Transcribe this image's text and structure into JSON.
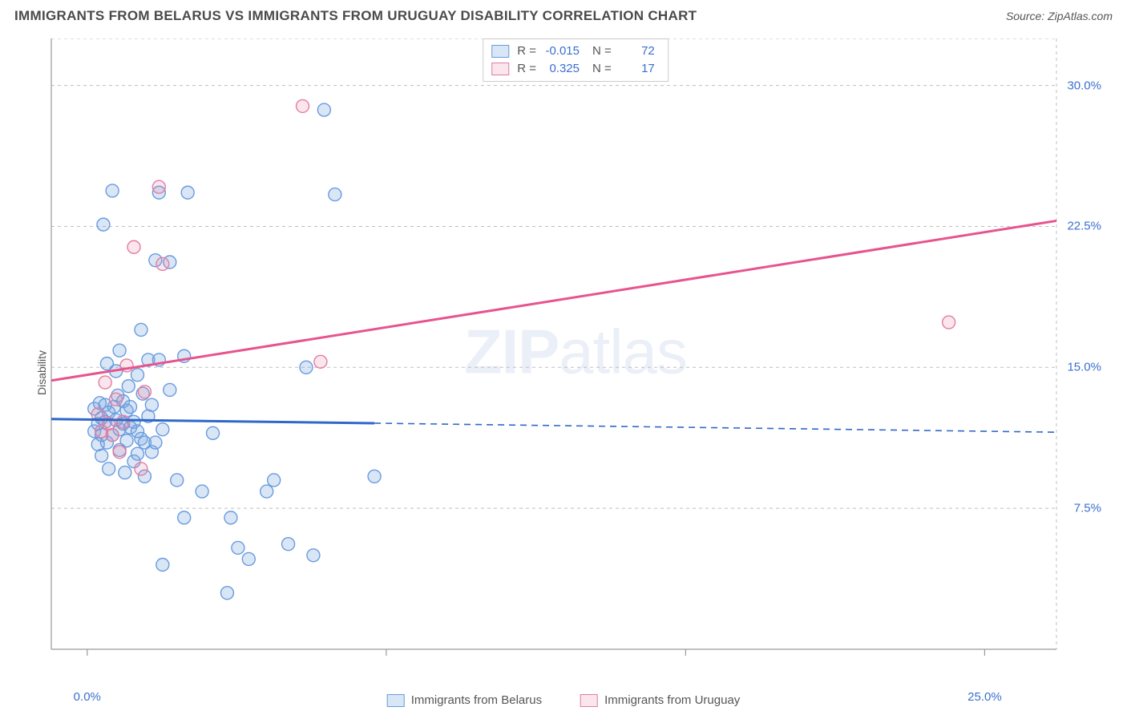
{
  "title": "IMMIGRANTS FROM BELARUS VS IMMIGRANTS FROM URUGUAY DISABILITY CORRELATION CHART",
  "source_prefix": "Source: ",
  "source": "ZipAtlas.com",
  "ylabel": "Disability",
  "watermark": "ZIPatlas",
  "chart": {
    "type": "scatter",
    "xlim": [
      -1.0,
      27.0
    ],
    "ylim": [
      0.0,
      32.5
    ],
    "x_ticks": [
      0.0,
      25.0
    ],
    "x_tick_labels": [
      "0.0%",
      "25.0%"
    ],
    "x_minor_ticks": [
      8.33,
      16.67
    ],
    "y_ticks": [
      7.5,
      15.0,
      22.5,
      30.0
    ],
    "y_tick_labels": [
      "7.5%",
      "15.0%",
      "22.5%",
      "30.0%"
    ],
    "grid_color": "#bfbfbf",
    "axis_color": "#9a9a9a",
    "background": "#ffffff",
    "marker_radius": 8,
    "marker_stroke_width": 1.4,
    "line_width": 3.0,
    "colors": {
      "belarus_fill": "rgba(120,165,220,0.28)",
      "belarus_stroke": "#6a9be0",
      "belarus_line": "#2f68c8",
      "uruguay_fill": "rgba(230,140,170,0.22)",
      "uruguay_stroke": "#e37da3",
      "uruguay_line": "#e7548d",
      "label_text": "#3b6fcf"
    },
    "series": {
      "belarus": {
        "label": "Immigrants from Belarus",
        "R": "-0.015",
        "N": "72",
        "trend": {
          "x0": -1.0,
          "y0": 12.25,
          "x1_solid": 8.0,
          "y1_solid": 12.03,
          "x1": 27.0,
          "y1": 11.55
        },
        "points": [
          [
            0.2,
            12.8
          ],
          [
            0.2,
            11.6
          ],
          [
            0.3,
            10.9
          ],
          [
            0.3,
            12.0
          ],
          [
            0.35,
            13.1
          ],
          [
            0.4,
            11.4
          ],
          [
            0.4,
            12.3
          ],
          [
            0.4,
            10.3
          ],
          [
            0.45,
            22.6
          ],
          [
            0.5,
            12.1
          ],
          [
            0.5,
            13.0
          ],
          [
            0.55,
            15.2
          ],
          [
            0.55,
            11.0
          ],
          [
            0.6,
            9.6
          ],
          [
            0.6,
            12.6
          ],
          [
            0.7,
            11.4
          ],
          [
            0.7,
            24.4
          ],
          [
            0.75,
            12.9
          ],
          [
            0.8,
            12.2
          ],
          [
            0.8,
            14.8
          ],
          [
            0.85,
            13.5
          ],
          [
            0.9,
            10.6
          ],
          [
            0.9,
            11.7
          ],
          [
            0.9,
            15.9
          ],
          [
            1.0,
            12.0
          ],
          [
            1.0,
            13.2
          ],
          [
            1.05,
            9.4
          ],
          [
            1.1,
            11.1
          ],
          [
            1.1,
            12.7
          ],
          [
            1.15,
            14.0
          ],
          [
            1.2,
            11.8
          ],
          [
            1.2,
            12.9
          ],
          [
            1.3,
            10.0
          ],
          [
            1.3,
            12.1
          ],
          [
            1.4,
            10.4
          ],
          [
            1.4,
            11.6
          ],
          [
            1.4,
            14.6
          ],
          [
            1.5,
            17.0
          ],
          [
            1.5,
            11.2
          ],
          [
            1.55,
            13.6
          ],
          [
            1.6,
            11.0
          ],
          [
            1.6,
            9.2
          ],
          [
            1.7,
            15.4
          ],
          [
            1.7,
            12.4
          ],
          [
            1.8,
            10.5
          ],
          [
            1.8,
            13.0
          ],
          [
            1.9,
            11.0
          ],
          [
            1.9,
            20.7
          ],
          [
            2.0,
            24.3
          ],
          [
            2.0,
            15.4
          ],
          [
            2.1,
            11.7
          ],
          [
            2.1,
            4.5
          ],
          [
            2.3,
            13.8
          ],
          [
            2.3,
            20.6
          ],
          [
            2.5,
            9.0
          ],
          [
            2.7,
            7.0
          ],
          [
            2.7,
            15.6
          ],
          [
            2.8,
            24.3
          ],
          [
            3.2,
            8.4
          ],
          [
            3.5,
            11.5
          ],
          [
            3.9,
            3.0
          ],
          [
            4.0,
            7.0
          ],
          [
            4.2,
            5.4
          ],
          [
            4.5,
            4.8
          ],
          [
            5.0,
            8.4
          ],
          [
            5.2,
            9.0
          ],
          [
            5.6,
            5.6
          ],
          [
            6.1,
            15.0
          ],
          [
            6.3,
            5.0
          ],
          [
            6.9,
            24.2
          ],
          [
            8.0,
            9.2
          ],
          [
            6.6,
            28.7
          ]
        ]
      },
      "uruguay": {
        "label": "Immigrants from Uruguay",
        "R": "0.325",
        "N": "17",
        "trend": {
          "x0": -1.0,
          "y0": 14.3,
          "x1": 27.0,
          "y1": 22.8
        },
        "points": [
          [
            0.3,
            12.5
          ],
          [
            0.4,
            11.6
          ],
          [
            0.5,
            14.2
          ],
          [
            0.6,
            12.0
          ],
          [
            0.7,
            11.4
          ],
          [
            0.8,
            13.3
          ],
          [
            0.9,
            10.5
          ],
          [
            1.0,
            12.1
          ],
          [
            1.1,
            15.1
          ],
          [
            1.3,
            21.4
          ],
          [
            1.5,
            9.6
          ],
          [
            1.6,
            13.7
          ],
          [
            2.1,
            20.5
          ],
          [
            2.0,
            24.6
          ],
          [
            6.5,
            15.3
          ],
          [
            6.0,
            28.9
          ],
          [
            24.0,
            17.4
          ]
        ]
      }
    }
  }
}
